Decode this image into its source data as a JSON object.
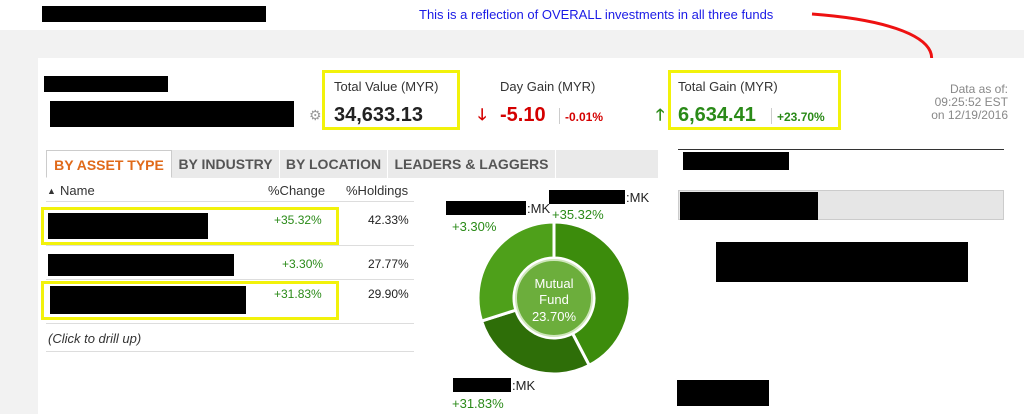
{
  "annotation": {
    "text": "This is a reflection of OVERALL investments in all three funds"
  },
  "summary": {
    "total_value_label": "Total Value (MYR)",
    "total_value": "34,633.13",
    "day_gain_label": "Day Gain (MYR)",
    "day_gain": "-5.10",
    "day_gain_pct": "-0.01%",
    "total_gain_label": "Total Gain (MYR)",
    "total_gain": "6,634.41",
    "total_gain_pct": "+23.70%",
    "data_as_of_label": "Data as of:",
    "data_time": "09:25:52 EST",
    "data_date": "on 12/19/2016"
  },
  "tabs": [
    "BY ASSET TYPE",
    "BY INDUSTRY",
    "BY LOCATION",
    "LEADERS & LAGGERS"
  ],
  "table": {
    "headers": {
      "name": "Name",
      "change": "%Change",
      "holdings": "%Holdings"
    },
    "rows": [
      {
        "change": "+35.32%",
        "holdings": "42.33%"
      },
      {
        "change": "+3.30%",
        "holdings": "27.77%"
      },
      {
        "change": "+31.83%",
        "holdings": "29.90%"
      }
    ],
    "drill_up": "(Click to drill up)"
  },
  "donut": {
    "center_line1": "Mutual",
    "center_line2": "Fund",
    "center_value": "23.70%",
    "labels": [
      {
        "suffix": ":MK",
        "value": "+35.32%"
      },
      {
        "suffix": ":MK",
        "value": "+3.30%"
      },
      {
        "suffix": ":MK",
        "value": "+31.83%"
      }
    ],
    "slice_shares": [
      42.33,
      27.77,
      29.9
    ],
    "colors": [
      "#3c8c0c",
      "#2e6e08",
      "#4ea01a"
    ]
  }
}
